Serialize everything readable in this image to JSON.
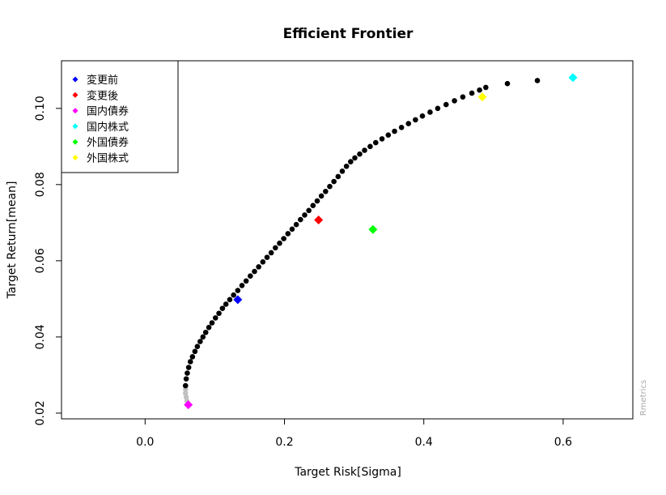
{
  "chart_data": {
    "type": "scatter",
    "title": "Efficient Frontier",
    "xlabel": "Target Risk[Sigma]",
    "ylabel": "Target Return[mean]",
    "xlim": [
      -0.12,
      0.7
    ],
    "ylim": [
      0.0185,
      0.1125
    ],
    "xticks": [
      0.0,
      0.2,
      0.4,
      0.6
    ],
    "yticks": [
      0.02,
      0.04,
      0.06,
      0.08,
      0.1
    ],
    "xtick_labels": [
      "0.0",
      "0.2",
      "0.4",
      "0.6"
    ],
    "ytick_labels": [
      "0.02",
      "0.04",
      "0.06",
      "0.08",
      "0.10"
    ],
    "grid": false,
    "legend_position": "top-left",
    "watermark": "Rmetrics",
    "frontier_color": "#000000",
    "inefficient_color": "#c0c0c0",
    "frontier_points": [
      [
        0.058,
        0.0272
      ],
      [
        0.059,
        0.029
      ],
      [
        0.0605,
        0.0305
      ],
      [
        0.0625,
        0.032
      ],
      [
        0.065,
        0.0335
      ],
      [
        0.068,
        0.0348
      ],
      [
        0.0715,
        0.0362
      ],
      [
        0.075,
        0.0375
      ],
      [
        0.079,
        0.0388
      ],
      [
        0.083,
        0.04
      ],
      [
        0.087,
        0.0412
      ],
      [
        0.0915,
        0.0425
      ],
      [
        0.096,
        0.0437
      ],
      [
        0.101,
        0.045
      ],
      [
        0.106,
        0.0462
      ],
      [
        0.111,
        0.0475
      ],
      [
        0.116,
        0.0486
      ],
      [
        0.1215,
        0.0498
      ],
      [
        0.127,
        0.051
      ],
      [
        0.133,
        0.0522
      ],
      [
        0.139,
        0.0535
      ],
      [
        0.145,
        0.0547
      ],
      [
        0.151,
        0.056
      ],
      [
        0.157,
        0.0572
      ],
      [
        0.163,
        0.0584
      ],
      [
        0.169,
        0.0597
      ],
      [
        0.175,
        0.0609
      ],
      [
        0.181,
        0.0621
      ],
      [
        0.187,
        0.0634
      ],
      [
        0.193,
        0.0646
      ],
      [
        0.199,
        0.0658
      ],
      [
        0.205,
        0.0671
      ],
      [
        0.211,
        0.0683
      ],
      [
        0.217,
        0.0695
      ],
      [
        0.223,
        0.0708
      ],
      [
        0.229,
        0.072
      ],
      [
        0.235,
        0.0732
      ],
      [
        0.241,
        0.0745
      ],
      [
        0.247,
        0.0757
      ],
      [
        0.253,
        0.077
      ],
      [
        0.259,
        0.0782
      ],
      [
        0.265,
        0.0795
      ],
      [
        0.271,
        0.0808
      ],
      [
        0.277,
        0.0821
      ],
      [
        0.283,
        0.0835
      ],
      [
        0.289,
        0.0848
      ],
      [
        0.295,
        0.086
      ],
      [
        0.301,
        0.087
      ],
      [
        0.308,
        0.088
      ],
      [
        0.315,
        0.089
      ],
      [
        0.323,
        0.09
      ],
      [
        0.331,
        0.091
      ],
      [
        0.34,
        0.092
      ],
      [
        0.349,
        0.093
      ],
      [
        0.358,
        0.094
      ],
      [
        0.368,
        0.095
      ],
      [
        0.378,
        0.096
      ],
      [
        0.388,
        0.097
      ],
      [
        0.398,
        0.098
      ],
      [
        0.409,
        0.099
      ],
      [
        0.42,
        0.1
      ],
      [
        0.432,
        0.101
      ],
      [
        0.444,
        0.102
      ],
      [
        0.456,
        0.103
      ],
      [
        0.469,
        0.104
      ],
      [
        0.48,
        0.1048
      ],
      [
        0.489,
        0.1055
      ],
      [
        0.52,
        0.1065
      ],
      [
        0.563,
        0.1073
      ]
    ],
    "inefficient_points": [
      [
        0.058,
        0.0262
      ],
      [
        0.058,
        0.0252
      ],
      [
        0.059,
        0.0242
      ],
      [
        0.06,
        0.0232
      ]
    ],
    "series": [
      {
        "name": "変更前",
        "color": "#0000ff",
        "x": 0.133,
        "y": 0.0498
      },
      {
        "name": "変更後",
        "color": "#ff0000",
        "x": 0.249,
        "y": 0.0707
      },
      {
        "name": "国内債券",
        "color": "#ff00ff",
        "x": 0.062,
        "y": 0.0222
      },
      {
        "name": "国内株式",
        "color": "#00ffff",
        "x": 0.614,
        "y": 0.1081
      },
      {
        "name": "外国債券",
        "color": "#00ff00",
        "x": 0.327,
        "y": 0.0682
      },
      {
        "name": "外国株式",
        "color": "#ffff00",
        "x": 0.484,
        "y": 0.103
      }
    ]
  }
}
